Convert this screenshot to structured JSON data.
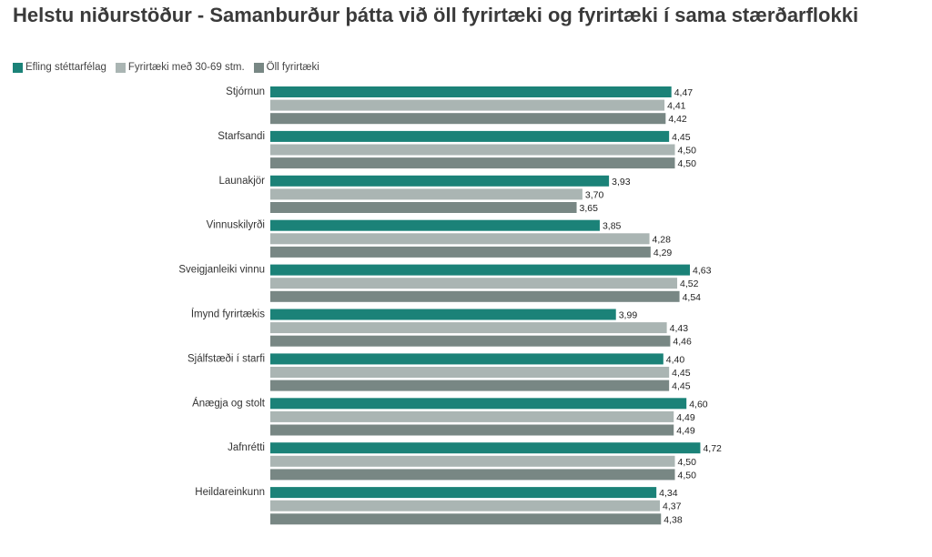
{
  "chart_data": {
    "type": "bar",
    "orientation": "horizontal",
    "title": "Helstu niðurstöður - Samanburður þátta við öll fyrirtæki og fyrirtæki í sama stærðarflokki",
    "xlim": [
      1,
      5
    ],
    "legend_position": "top-left",
    "categories": [
      "Stjórnun",
      "Starfsandi",
      "Launakjör",
      "Vinnuskilyrði",
      "Sveigjanleiki vinnu",
      "Ímynd fyrirtækis",
      "Sjálfstæði í starfi",
      "Ánægja og stolt",
      "Jafnrétti",
      "Heildareinkunn"
    ],
    "series": [
      {
        "name": "Efling stéttarfélag",
        "color": "#1b8278",
        "values": [
          4.47,
          4.45,
          3.93,
          3.85,
          4.63,
          3.99,
          4.4,
          4.6,
          4.72,
          4.34
        ]
      },
      {
        "name": "Fyrirtæki með 30-69 stm.",
        "color": "#aab5b3",
        "values": [
          4.41,
          4.5,
          3.7,
          4.28,
          4.52,
          4.43,
          4.45,
          4.49,
          4.5,
          4.37
        ]
      },
      {
        "name": "Öll fyrirtæki",
        "color": "#788784",
        "values": [
          4.42,
          4.5,
          3.65,
          4.29,
          4.54,
          4.46,
          4.45,
          4.49,
          4.5,
          4.38
        ]
      }
    ]
  }
}
